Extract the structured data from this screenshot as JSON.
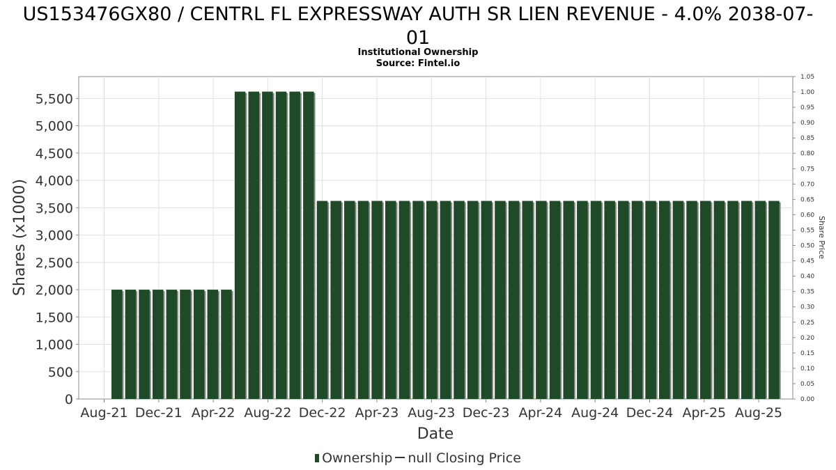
{
  "header": {
    "title_line1": "US153476GX80 / CENTRL FL EXPRESSWAY AUTH SR LIEN REVENUE - 4.0% 2038-07-",
    "title_line2": "01",
    "subtitle_line1": "Institutional Ownership",
    "subtitle_line2": "Source: Fintel.io"
  },
  "legend": {
    "ownership_label": "Ownership",
    "price_label": "null Closing Price"
  },
  "colors": {
    "bar": "#1e4a27",
    "bar_shadow": "#8a8a8a",
    "grid": "#e0e0e0",
    "axis": "#888888"
  },
  "chart_data": {
    "type": "bar",
    "title": "US153476GX80 / CENTRL FL EXPRESSWAY AUTH SR LIEN REVENUE - 4.0% 2038-07-01",
    "subtitle": "Institutional Ownership / Source: Fintel.io",
    "xlabel": "Date",
    "ylabel": "Shares (x1000)",
    "y2label": "Share Price",
    "ylim": [
      0,
      5900
    ],
    "y2lim": [
      0,
      1.05
    ],
    "yticks": [
      "0",
      "500",
      "1,000",
      "1,500",
      "2,000",
      "2,500",
      "3,000",
      "3,500",
      "4,000",
      "4,500",
      "5,000",
      "5,500"
    ],
    "y2ticks": [
      "0.00",
      "0.05",
      "0.10",
      "0.15",
      "0.20",
      "0.25",
      "0.30",
      "0.35",
      "0.40",
      "0.45",
      "0.50",
      "0.55",
      "0.60",
      "0.65",
      "0.70",
      "0.75",
      "0.80",
      "0.85",
      "0.90",
      "0.95",
      "1.00",
      "1.05"
    ],
    "xticks": [
      "Aug-21",
      "Dec-21",
      "Apr-22",
      "Aug-22",
      "Dec-22",
      "Apr-23",
      "Aug-23",
      "Dec-23",
      "Apr-24",
      "Aug-24",
      "Dec-24",
      "Apr-25",
      "Aug-25"
    ],
    "grid": true,
    "legend_position": "bottom",
    "series": [
      {
        "name": "Ownership",
        "values": [
          2000,
          2000,
          2000,
          2000,
          2000,
          2000,
          2000,
          2000,
          2000,
          5625,
          5625,
          5625,
          5625,
          5625,
          5625,
          3625,
          3625,
          3625,
          3625,
          3625,
          3625,
          3625,
          3625,
          3625,
          3625,
          3625,
          3625,
          3625,
          3625,
          3625,
          3625,
          3625,
          3625,
          3625,
          3625,
          3625,
          3625,
          3625,
          3625,
          3625,
          3625,
          3625,
          3625,
          3625,
          3625,
          3625,
          3625,
          3625,
          3625
        ]
      }
    ]
  }
}
